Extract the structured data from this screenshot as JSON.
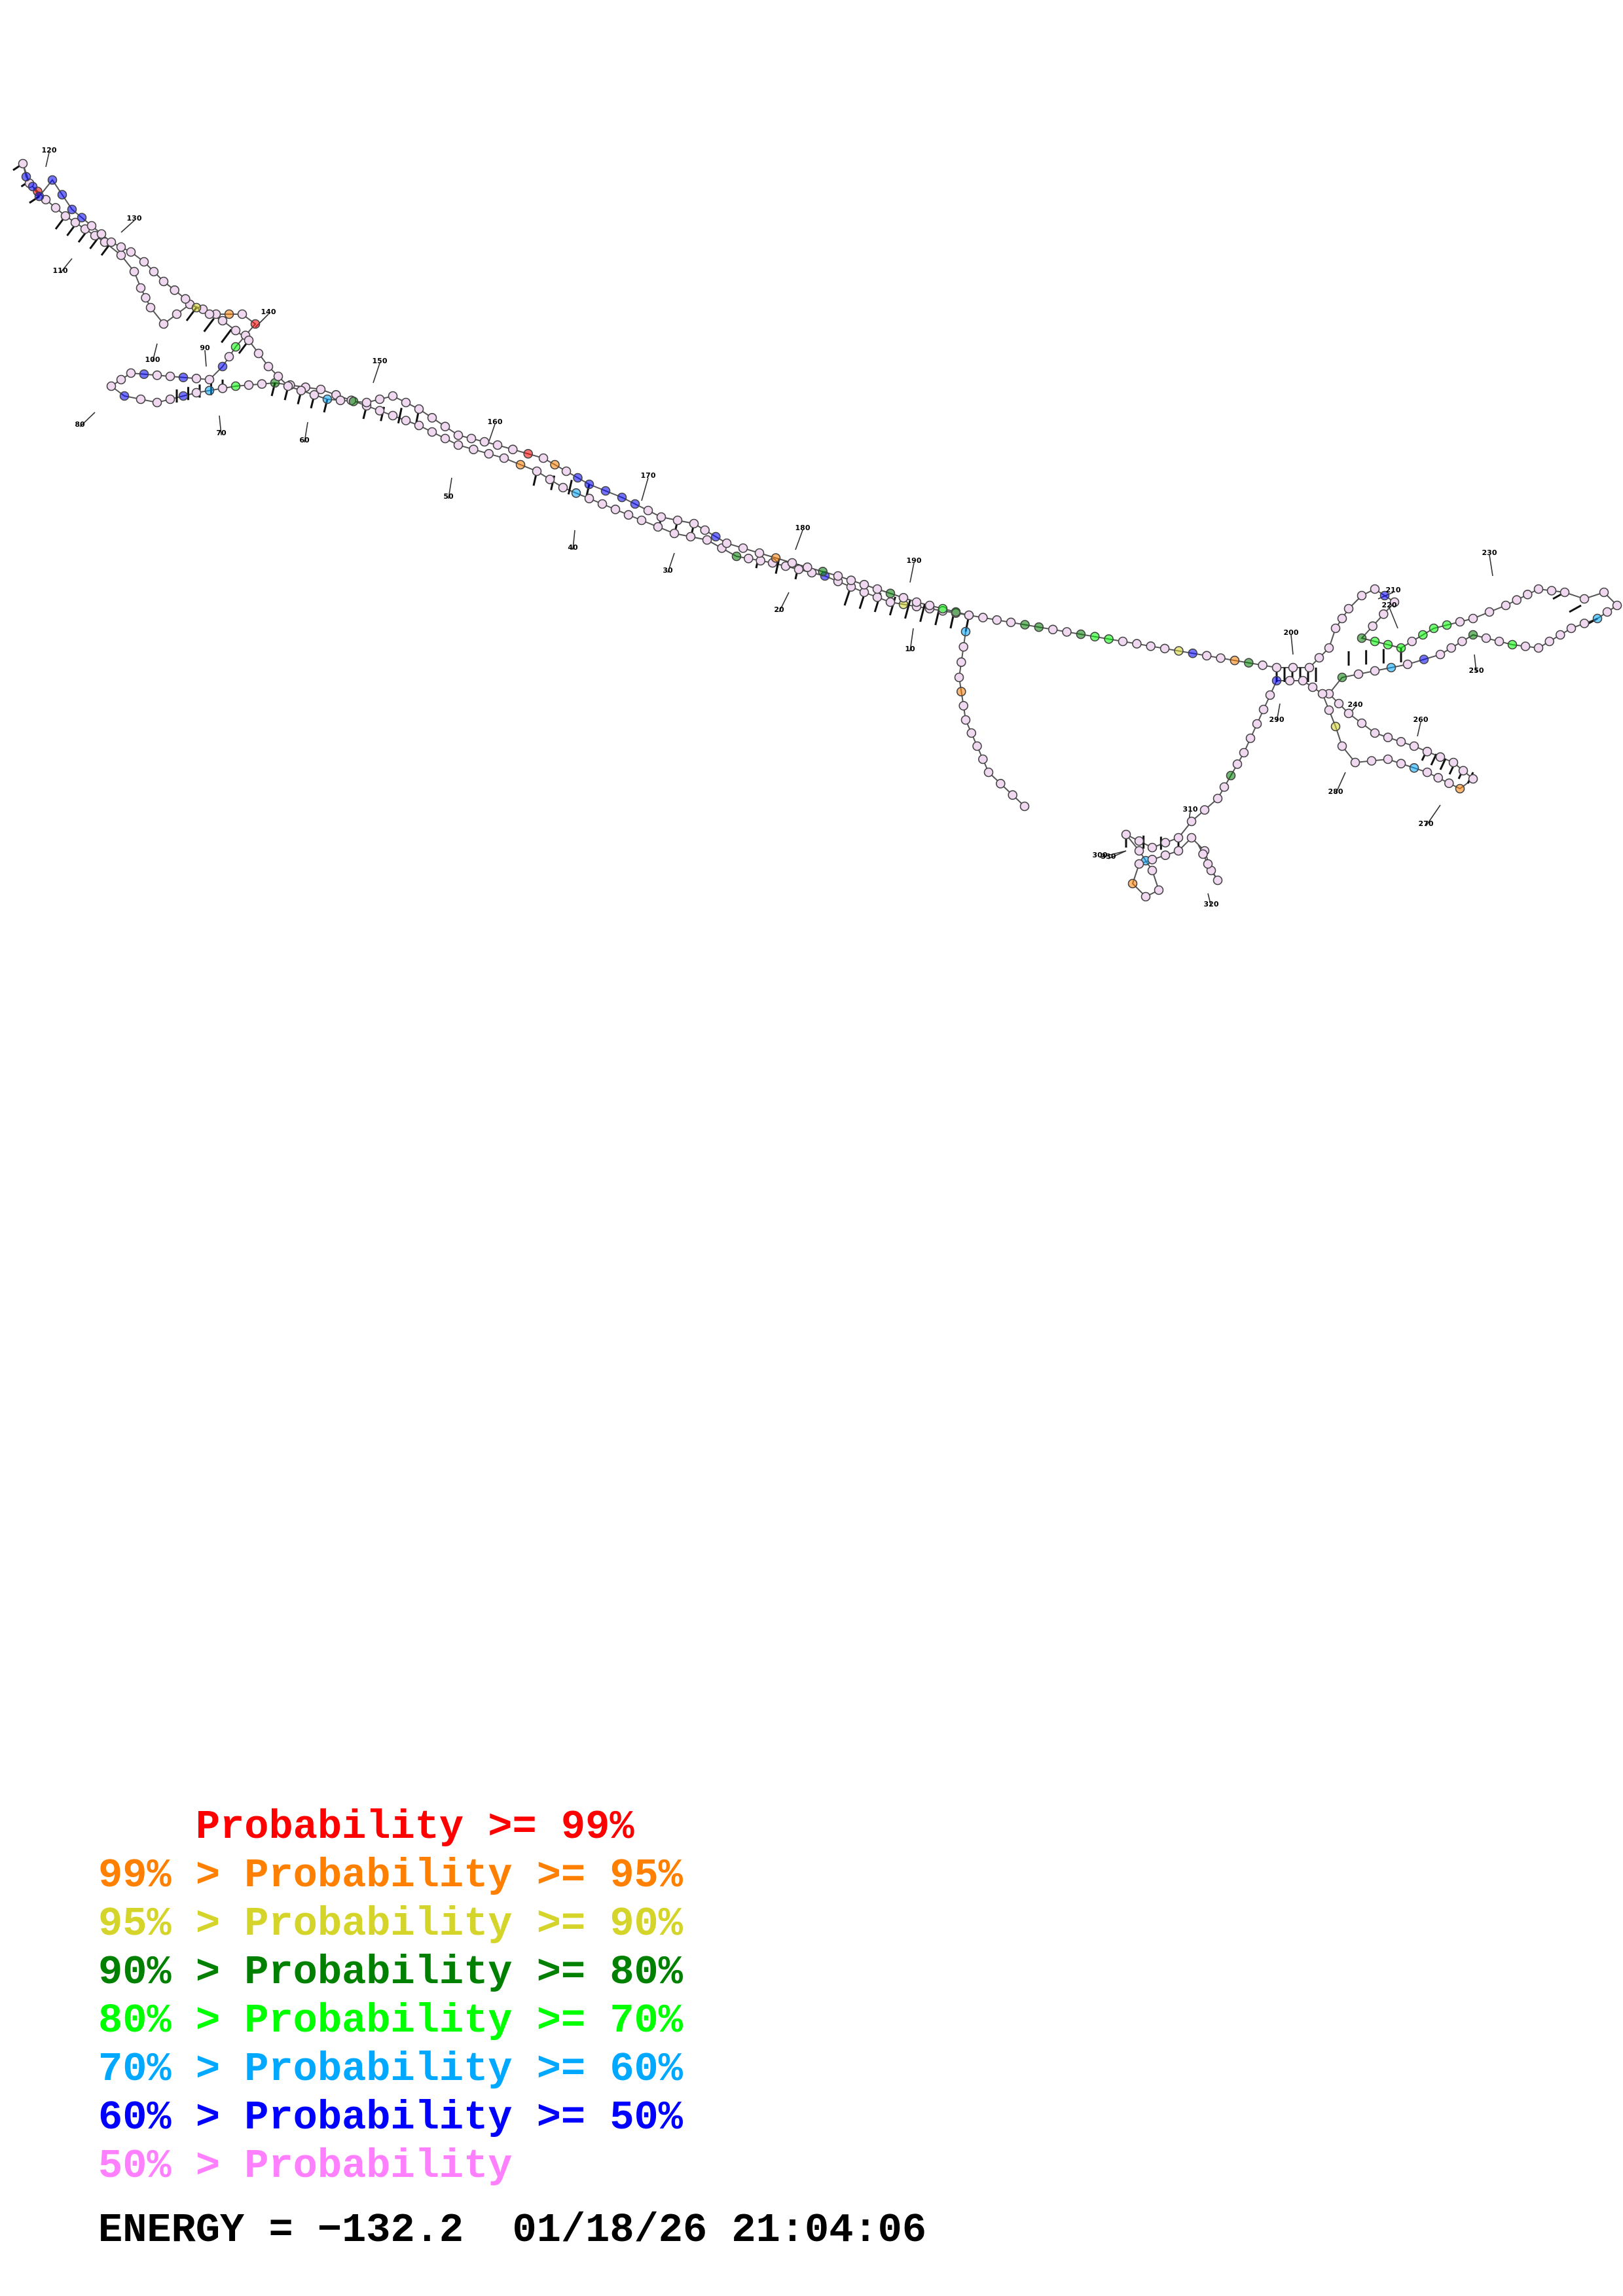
{
  "structure": {
    "position_labels": [
      "10",
      "20",
      "30",
      "40",
      "50",
      "60",
      "70",
      "80",
      "90",
      "100",
      "110",
      "120",
      "130",
      "140",
      "150",
      "160",
      "170",
      "180",
      "190",
      "200",
      "210",
      "220",
      "230",
      "240",
      "250",
      "260",
      "270",
      "280",
      "290",
      "300",
      "310",
      "320",
      "330"
    ]
  },
  "legend": {
    "rows": [
      {
        "prefix": "    ",
        "text": "Probability >= 99%",
        "color": "#ff0000"
      },
      {
        "prefix": "99% > ",
        "text": "Probability >= 95%",
        "color": "#ff8000"
      },
      {
        "prefix": "95% > ",
        "text": "Probability >= 90%",
        "color": "#d4d42a"
      },
      {
        "prefix": "90% > ",
        "text": "Probability >= 80%",
        "color": "#008000"
      },
      {
        "prefix": "80% > ",
        "text": "Probability >= 70%",
        "color": "#00ff00"
      },
      {
        "prefix": "70% > ",
        "text": "Probability >= 60%",
        "color": "#00a8ff"
      },
      {
        "prefix": "60% > ",
        "text": "Probability >= 50%",
        "color": "#0000ff"
      },
      {
        "prefix": "50% > ",
        "text": "Probability",
        "color": "#ff80ff"
      }
    ]
  },
  "footer": {
    "energy_label": "ENERGY =",
    "energy_value": "−132.2",
    "timestamp": "01/18/26 21:04:06"
  },
  "colors": {
    "p99": "#ff0000",
    "p95": "#ff8000",
    "p90": "#d4d42a",
    "p80": "#008000",
    "p70": "#00ff00",
    "p60": "#00a8ff",
    "p50": "#0000ff",
    "plow": "#ff80ff",
    "nucleotide_fill_low": "#f0d8f0"
  }
}
